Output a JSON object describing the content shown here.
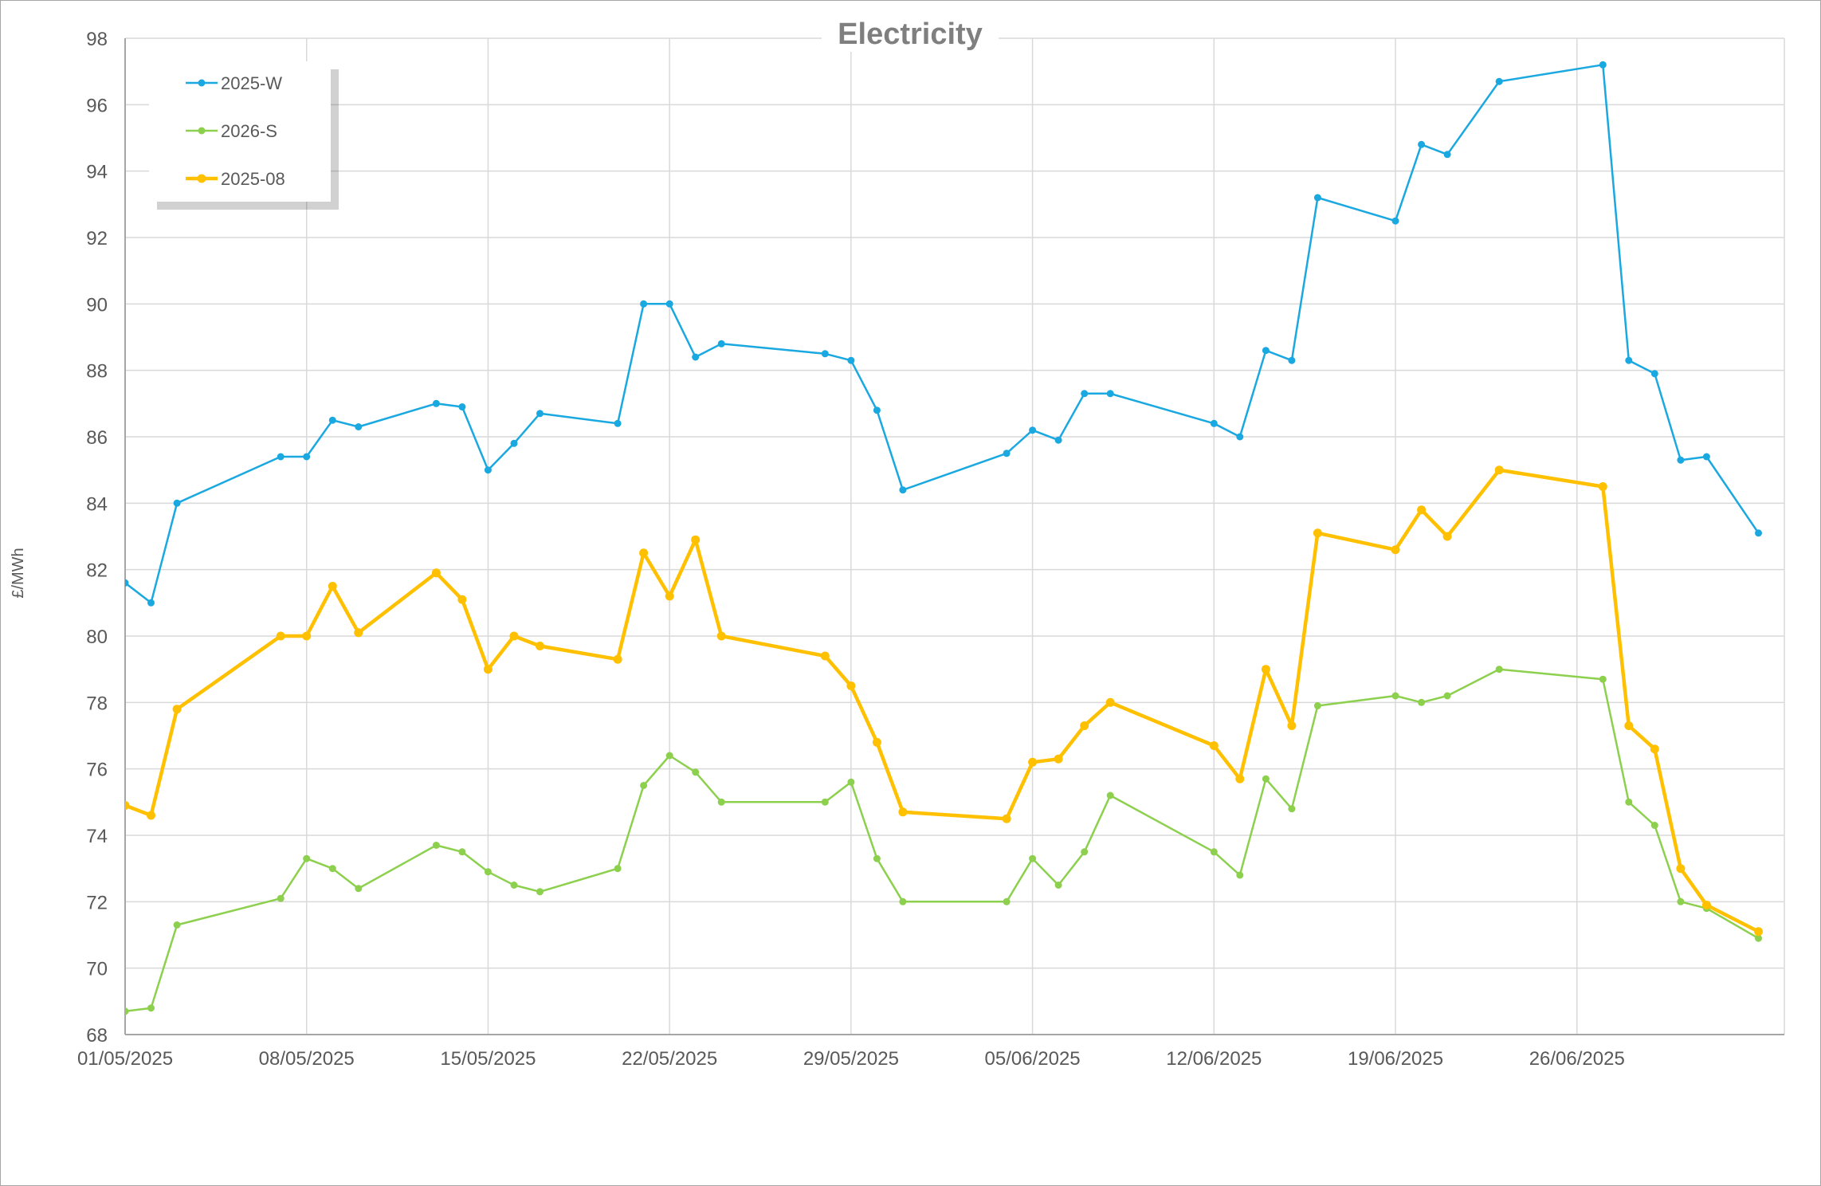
{
  "chart_data": {
    "type": "line",
    "title": "Electricity",
    "xlabel": "",
    "ylabel": "£/MWh",
    "ylim": [
      68,
      98
    ],
    "yticks": [
      68,
      70,
      72,
      74,
      76,
      78,
      80,
      82,
      84,
      86,
      88,
      90,
      92,
      94,
      96,
      98
    ],
    "xlim": [
      "2025-05-01",
      "2025-07-04"
    ],
    "xticks": [
      "2025-05-01",
      "2025-05-08",
      "2025-05-15",
      "2025-05-22",
      "2025-05-29",
      "2025-06-05",
      "2025-06-12",
      "2025-06-19",
      "2025-06-26"
    ],
    "xtick_labels": [
      "01/05/2025",
      "08/05/2025",
      "15/05/2025",
      "22/05/2025",
      "29/05/2025",
      "05/06/2025",
      "12/06/2025",
      "19/06/2025",
      "26/06/2025"
    ],
    "grid": true,
    "legend_position": "top-left",
    "x": [
      "2025-05-01",
      "2025-05-02",
      "2025-05-03",
      "2025-05-07",
      "2025-05-08",
      "2025-05-09",
      "2025-05-10",
      "2025-05-13",
      "2025-05-14",
      "2025-05-15",
      "2025-05-16",
      "2025-05-17",
      "2025-05-20",
      "2025-05-21",
      "2025-05-22",
      "2025-05-23",
      "2025-05-24",
      "2025-05-28",
      "2025-05-29",
      "2025-05-30",
      "2025-05-31",
      "2025-06-04",
      "2025-06-05",
      "2025-06-06",
      "2025-06-07",
      "2025-06-08",
      "2025-06-12",
      "2025-06-13",
      "2025-06-14",
      "2025-06-15",
      "2025-06-16",
      "2025-06-19",
      "2025-06-20",
      "2025-06-21",
      "2025-06-23",
      "2025-06-27",
      "2025-06-28",
      "2025-06-29",
      "2025-06-30",
      "2025-07-01",
      "2025-07-03"
    ],
    "series": [
      {
        "name": "2025-W",
        "color": "#1aa8e0",
        "values": [
          81.6,
          81.0,
          84.0,
          85.4,
          85.4,
          86.5,
          86.3,
          87.0,
          86.9,
          85.0,
          85.8,
          86.7,
          86.4,
          90.0,
          90.0,
          88.4,
          88.8,
          88.5,
          88.3,
          86.8,
          84.4,
          85.5,
          86.2,
          85.9,
          87.3,
          87.3,
          86.4,
          86.0,
          88.6,
          88.3,
          93.2,
          92.5,
          94.8,
          94.5,
          96.7,
          97.2,
          88.3,
          87.9,
          85.3,
          85.4,
          83.1
        ]
      },
      {
        "name": "2026-S",
        "color": "#8cd04e",
        "values": [
          68.7,
          68.8,
          71.3,
          72.1,
          73.3,
          73.0,
          72.4,
          73.7,
          73.5,
          72.9,
          72.5,
          72.3,
          73.0,
          75.5,
          76.4,
          75.9,
          75.0,
          75.0,
          75.6,
          73.3,
          72.0,
          72.0,
          73.3,
          72.5,
          73.5,
          75.2,
          73.5,
          72.8,
          75.7,
          74.8,
          77.9,
          78.2,
          78.0,
          78.2,
          79.0,
          78.7,
          75.0,
          74.3,
          72.0,
          71.8,
          70.9
        ]
      },
      {
        "name": "2025-08",
        "color": "#ffc000",
        "values": [
          74.9,
          74.6,
          77.8,
          80.0,
          80.0,
          81.5,
          80.1,
          81.9,
          81.1,
          79.0,
          80.0,
          79.7,
          79.3,
          82.5,
          81.2,
          82.9,
          80.0,
          79.4,
          78.5,
          76.8,
          74.7,
          74.5,
          76.2,
          76.3,
          77.3,
          78.0,
          76.7,
          75.7,
          79.0,
          77.3,
          83.1,
          82.6,
          83.8,
          83.0,
          85.0,
          84.5,
          77.3,
          76.6,
          73.0,
          71.9,
          71.1
        ]
      }
    ]
  }
}
